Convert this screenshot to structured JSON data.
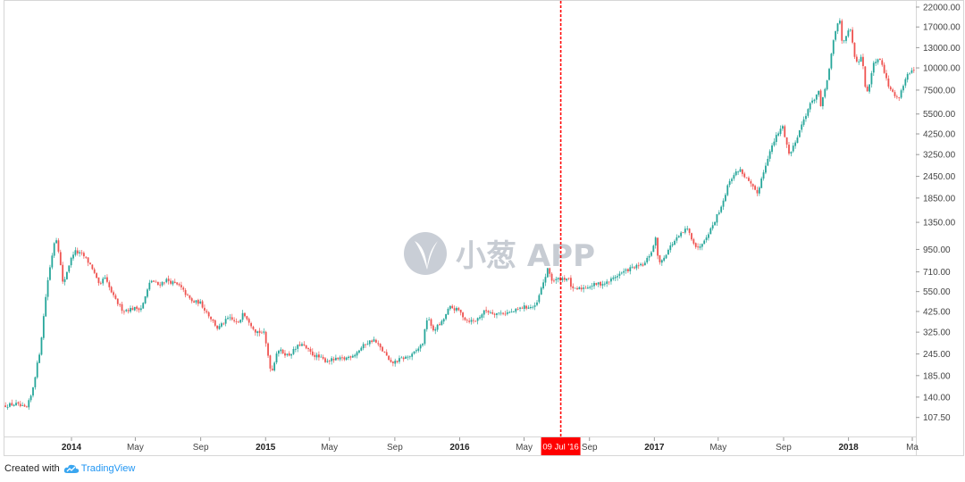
{
  "chart_data": {
    "type": "candlestick",
    "y_scale": "log",
    "ylim": [
      88,
      22500
    ],
    "colors": {
      "up": "#26a69a",
      "down": "#ef5350",
      "marker": "#ff0000",
      "watermark": "#c7ccd3"
    },
    "price_ticks": [
      "22000.00",
      "17000.00",
      "13000.00",
      "10000.00",
      "7500.00",
      "5500.00",
      "4250.00",
      "3250.00",
      "2450.00",
      "1850.00",
      "1350.00",
      "950.00",
      "710.00",
      "550.00",
      "425.00",
      "325.00",
      "245.00",
      "185.00",
      "140.00",
      "107.50"
    ],
    "time_ticks": [
      {
        "label": "2014",
        "date": "2014-01-01",
        "bold": true
      },
      {
        "label": "May",
        "date": "2014-05-01",
        "bold": false
      },
      {
        "label": "Sep",
        "date": "2014-09-01",
        "bold": false
      },
      {
        "label": "2015",
        "date": "2015-01-01",
        "bold": true
      },
      {
        "label": "May",
        "date": "2015-05-01",
        "bold": false
      },
      {
        "label": "Sep",
        "date": "2015-09-01",
        "bold": false
      },
      {
        "label": "2016",
        "date": "2016-01-01",
        "bold": true
      },
      {
        "label": "May",
        "date": "2016-05-01",
        "bold": false
      },
      {
        "label": "Sep",
        "date": "2016-09-01",
        "bold": false
      },
      {
        "label": "2017",
        "date": "2017-01-01",
        "bold": true
      },
      {
        "label": "May",
        "date": "2017-05-01",
        "bold": false
      },
      {
        "label": "Sep",
        "date": "2017-09-01",
        "bold": false
      },
      {
        "label": "2018",
        "date": "2018-01-01",
        "bold": true
      },
      {
        "label": "Ma",
        "date": "2018-05-01",
        "bold": false
      }
    ],
    "x_range": [
      "2013-08-28",
      "2018-05-06"
    ],
    "marker": {
      "label": "09 Jul '16",
      "date": "2016-07-09"
    },
    "price_path": [
      [
        "2013-08-28",
        125
      ],
      [
        "2013-09-20",
        128
      ],
      [
        "2013-10-10",
        120
      ],
      [
        "2013-10-20",
        145
      ],
      [
        "2013-11-05",
        260
      ],
      [
        "2013-11-18",
        600
      ],
      [
        "2013-12-04",
        1150
      ],
      [
        "2013-12-10",
        930
      ],
      [
        "2013-12-18",
        600
      ],
      [
        "2013-12-28",
        760
      ],
      [
        "2014-01-08",
        930
      ],
      [
        "2014-01-25",
        880
      ],
      [
        "2014-02-10",
        760
      ],
      [
        "2014-02-25",
        580
      ],
      [
        "2014-03-05",
        670
      ],
      [
        "2014-03-25",
        500
      ],
      [
        "2014-04-10",
        430
      ],
      [
        "2014-04-25",
        440
      ],
      [
        "2014-05-15",
        445
      ],
      [
        "2014-06-01",
        640
      ],
      [
        "2014-06-15",
        600
      ],
      [
        "2014-07-01",
        640
      ],
      [
        "2014-07-25",
        590
      ],
      [
        "2014-08-18",
        480
      ],
      [
        "2014-09-01",
        480
      ],
      [
        "2014-09-22",
        390
      ],
      [
        "2014-10-05",
        340
      ],
      [
        "2014-10-25",
        390
      ],
      [
        "2014-11-15",
        360
      ],
      [
        "2014-11-20",
        430
      ],
      [
        "2014-12-15",
        330
      ],
      [
        "2014-12-31",
        320
      ],
      [
        "2015-01-14",
        190
      ],
      [
        "2015-01-25",
        260
      ],
      [
        "2015-02-15",
        240
      ],
      [
        "2015-03-10",
        280
      ],
      [
        "2015-03-31",
        245
      ],
      [
        "2015-04-25",
        225
      ],
      [
        "2015-05-31",
        230
      ],
      [
        "2015-06-20",
        245
      ],
      [
        "2015-07-10",
        280
      ],
      [
        "2015-07-25",
        295
      ],
      [
        "2015-08-18",
        240
      ],
      [
        "2015-08-25",
        215
      ],
      [
        "2015-09-15",
        230
      ],
      [
        "2015-10-05",
        240
      ],
      [
        "2015-10-25",
        280
      ],
      [
        "2015-11-04",
        410
      ],
      [
        "2015-11-12",
        330
      ],
      [
        "2015-12-01",
        370
      ],
      [
        "2015-12-15",
        450
      ],
      [
        "2016-01-01",
        430
      ],
      [
        "2016-01-15",
        380
      ],
      [
        "2016-02-01",
        375
      ],
      [
        "2016-02-20",
        430
      ],
      [
        "2016-03-10",
        415
      ],
      [
        "2016-04-10",
        420
      ],
      [
        "2016-05-01",
        450
      ],
      [
        "2016-05-25",
        450
      ],
      [
        "2016-06-05",
        580
      ],
      [
        "2016-06-17",
        740
      ],
      [
        "2016-06-25",
        630
      ],
      [
        "2016-07-09",
        650
      ],
      [
        "2016-07-25",
        655
      ],
      [
        "2016-08-02",
        560
      ],
      [
        "2016-08-20",
        575
      ],
      [
        "2016-09-15",
        605
      ],
      [
        "2016-10-05",
        615
      ],
      [
        "2016-10-25",
        680
      ],
      [
        "2016-11-20",
        745
      ],
      [
        "2016-12-15",
        780
      ],
      [
        "2016-12-31",
        960
      ],
      [
        "2017-01-05",
        1100
      ],
      [
        "2017-01-12",
        780
      ],
      [
        "2017-02-05",
        1020
      ],
      [
        "2017-03-05",
        1250
      ],
      [
        "2017-03-25",
        950
      ],
      [
        "2017-04-20",
        1250
      ],
      [
        "2017-05-10",
        1700
      ],
      [
        "2017-05-25",
        2350
      ],
      [
        "2017-06-12",
        2700
      ],
      [
        "2017-07-15",
        1950
      ],
      [
        "2017-08-05",
        3200
      ],
      [
        "2017-08-20",
        4100
      ],
      [
        "2017-09-01",
        4700
      ],
      [
        "2017-09-14",
        3200
      ],
      [
        "2017-10-01",
        4300
      ],
      [
        "2017-10-20",
        6000
      ],
      [
        "2017-11-08",
        7400
      ],
      [
        "2017-11-12",
        5900
      ],
      [
        "2017-11-28",
        9900
      ],
      [
        "2017-12-07",
        15000
      ],
      [
        "2017-12-17",
        19200
      ],
      [
        "2017-12-22",
        14000
      ],
      [
        "2018-01-06",
        16500
      ],
      [
        "2018-01-17",
        10500
      ],
      [
        "2018-01-28",
        11500
      ],
      [
        "2018-02-06",
        6900
      ],
      [
        "2018-02-20",
        11000
      ],
      [
        "2018-03-05",
        11300
      ],
      [
        "2018-03-18",
        8000
      ],
      [
        "2018-04-01",
        6900
      ],
      [
        "2018-04-06",
        6700
      ],
      [
        "2018-04-24",
        9200
      ],
      [
        "2018-05-06",
        9600
      ]
    ],
    "watermark": {
      "text": "小葱 APP"
    }
  },
  "footer": {
    "prefix": "Created with",
    "brand": "TradingView"
  }
}
